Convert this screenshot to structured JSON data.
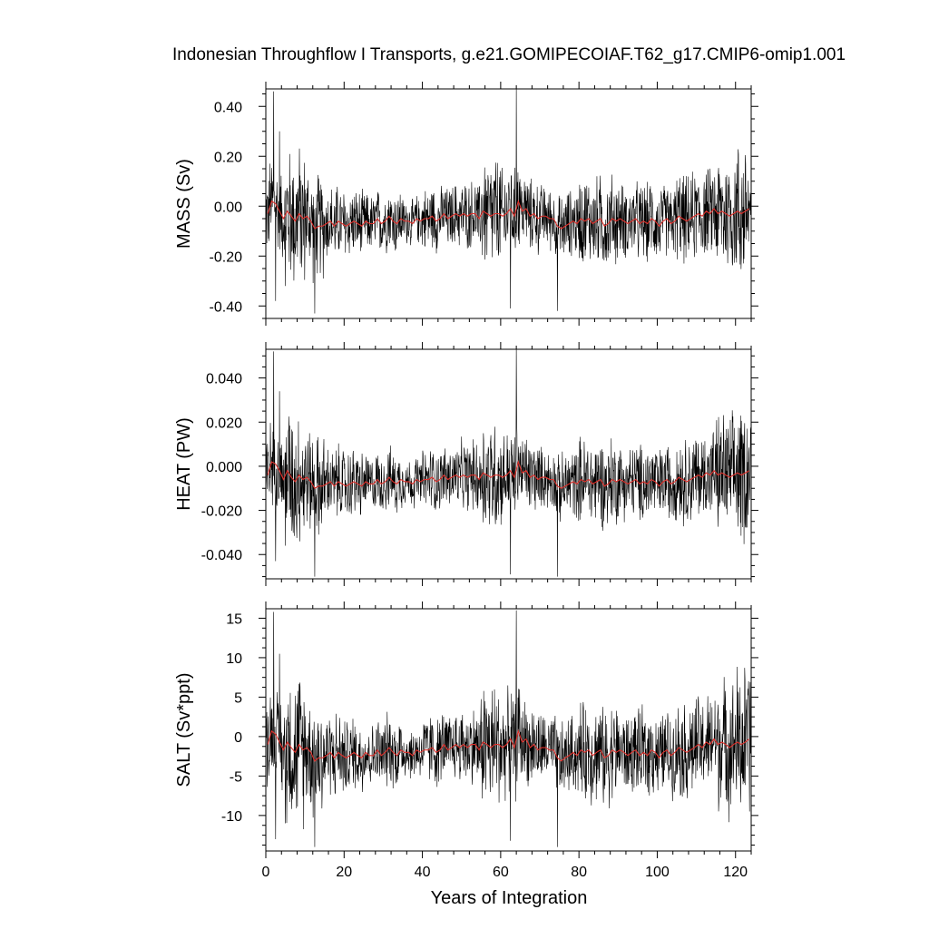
{
  "title": "Indonesian Throughflow I Transports, g.e21.GOMIPECOIAF.T62_g17.CMIP6-omip1.001",
  "xlabel": "Years of Integration",
  "x_ticks": [
    "0",
    "20",
    "40",
    "60",
    "80",
    "100",
    "120"
  ],
  "colors": {
    "monthly": "#000000",
    "annual": "#e0302b"
  },
  "chart_data": [
    {
      "type": "line",
      "panel": "mass",
      "ylabel": "MASS (Sv)",
      "xlim": [
        0,
        124
      ],
      "ylim": [
        -0.45,
        0.47
      ],
      "y_ticks": [
        0.4,
        0.2,
        0.0,
        -0.2,
        -0.4
      ],
      "y_tick_labels": [
        "0.40",
        "0.20",
        "0.00",
        "-0.20",
        "-0.40"
      ],
      "series": [
        {
          "style": "monthly",
          "envelope": [
            0.16,
            0.26,
            0.2,
            0.14,
            0.13,
            0.11,
            0.12,
            0.09,
            0.12,
            0.12,
            0.13,
            0.22,
            0.18,
            0.14,
            0.12,
            0.13,
            0.17,
            0.17,
            0.14,
            0.15,
            0.14,
            0.17,
            0.17,
            0.23,
            0.27
          ],
          "extremes": [
            [
              2,
              0.46
            ],
            [
              2.5,
              -0.38
            ],
            [
              5,
              -0.32
            ],
            [
              12.5,
              -0.43
            ],
            [
              64,
              0.47
            ],
            [
              62.5,
              -0.41
            ],
            [
              74.5,
              -0.42
            ],
            [
              3.5,
              0.3
            ]
          ]
        },
        {
          "style": "annual",
          "x": [
            0,
            1,
            2,
            3,
            4,
            5,
            6,
            7,
            8,
            9,
            10,
            11,
            12,
            13,
            14,
            15,
            16,
            17,
            18,
            19,
            20,
            21,
            22,
            23,
            24,
            25,
            26,
            27,
            28,
            29,
            30,
            31,
            32,
            33,
            34,
            35,
            36,
            37,
            38,
            39,
            40,
            41,
            42,
            43,
            44,
            45,
            46,
            47,
            48,
            49,
            50,
            51,
            52,
            53,
            54,
            55,
            56,
            57,
            58,
            59,
            60,
            61,
            62,
            63,
            64,
            65,
            66,
            67,
            68,
            69,
            70,
            71,
            72,
            73,
            74,
            75,
            76,
            77,
            78,
            79,
            80,
            81,
            82,
            83,
            84,
            85,
            86,
            87,
            88,
            89,
            90,
            91,
            92,
            93,
            94,
            95,
            96,
            97,
            98,
            99,
            100,
            101,
            102,
            103,
            104,
            105,
            106,
            107,
            108,
            109,
            110,
            111,
            112,
            113,
            114,
            115,
            116,
            117,
            118,
            119,
            120,
            121,
            122,
            123
          ],
          "y": [
            -0.03,
            0.02,
            0.01,
            -0.02,
            -0.05,
            -0.02,
            -0.04,
            -0.06,
            -0.03,
            -0.05,
            -0.04,
            -0.06,
            -0.09,
            -0.08,
            -0.08,
            -0.07,
            -0.06,
            -0.08,
            -0.06,
            -0.07,
            -0.08,
            -0.07,
            -0.06,
            -0.07,
            -0.08,
            -0.06,
            -0.07,
            -0.07,
            -0.05,
            -0.07,
            -0.06,
            -0.04,
            -0.06,
            -0.07,
            -0.05,
            -0.06,
            -0.06,
            -0.07,
            -0.05,
            -0.06,
            -0.05,
            -0.05,
            -0.04,
            -0.06,
            -0.05,
            -0.03,
            -0.05,
            -0.04,
            -0.03,
            -0.04,
            -0.03,
            -0.04,
            -0.03,
            -0.03,
            -0.05,
            -0.02,
            -0.03,
            -0.04,
            -0.03,
            -0.03,
            -0.04,
            -0.03,
            -0.01,
            -0.04,
            0.02,
            -0.02,
            -0.01,
            -0.04,
            -0.03,
            -0.05,
            -0.04,
            -0.04,
            -0.05,
            -0.05,
            -0.08,
            -0.09,
            -0.08,
            -0.07,
            -0.06,
            -0.07,
            -0.05,
            -0.06,
            -0.05,
            -0.07,
            -0.06,
            -0.05,
            -0.08,
            -0.07,
            -0.05,
            -0.06,
            -0.05,
            -0.06,
            -0.07,
            -0.06,
            -0.05,
            -0.07,
            -0.06,
            -0.07,
            -0.05,
            -0.06,
            -0.08,
            -0.06,
            -0.05,
            -0.07,
            -0.06,
            -0.04,
            -0.05,
            -0.06,
            -0.05,
            -0.04,
            -0.03,
            -0.04,
            -0.02,
            -0.03,
            -0.01,
            -0.03,
            -0.02,
            -0.03,
            -0.04,
            -0.03,
            -0.02,
            -0.03,
            -0.02,
            -0.01
          ]
        }
      ]
    },
    {
      "type": "line",
      "panel": "heat",
      "ylabel": "HEAT (PW)",
      "xlim": [
        0,
        124
      ],
      "ylim": [
        -0.051,
        0.053
      ],
      "y_ticks": [
        0.04,
        0.02,
        0.0,
        -0.02,
        -0.04
      ],
      "y_tick_labels": [
        "0.040",
        "0.020",
        "0.000",
        "-0.020",
        "-0.040"
      ],
      "series": [
        {
          "style": "monthly",
          "envelope": [
            0.018,
            0.029,
            0.022,
            0.016,
            0.015,
            0.012,
            0.013,
            0.01,
            0.013,
            0.013,
            0.015,
            0.025,
            0.02,
            0.016,
            0.013,
            0.015,
            0.019,
            0.019,
            0.016,
            0.017,
            0.016,
            0.019,
            0.019,
            0.026,
            0.03
          ],
          "extremes": [
            [
              2,
              0.052
            ],
            [
              2.5,
              -0.043
            ],
            [
              5,
              -0.036
            ],
            [
              12.5,
              -0.05
            ],
            [
              64,
              0.053
            ],
            [
              62.5,
              -0.049
            ],
            [
              74.5,
              -0.05
            ],
            [
              3.5,
              0.034
            ]
          ]
        },
        {
          "style": "annual",
          "x": [
            0,
            1,
            2,
            3,
            4,
            5,
            6,
            7,
            8,
            9,
            10,
            11,
            12,
            13,
            14,
            15,
            16,
            17,
            18,
            19,
            20,
            21,
            22,
            23,
            24,
            25,
            26,
            27,
            28,
            29,
            30,
            31,
            32,
            33,
            34,
            35,
            36,
            37,
            38,
            39,
            40,
            41,
            42,
            43,
            44,
            45,
            46,
            47,
            48,
            49,
            50,
            51,
            52,
            53,
            54,
            55,
            56,
            57,
            58,
            59,
            60,
            61,
            62,
            63,
            64,
            65,
            66,
            67,
            68,
            69,
            70,
            71,
            72,
            73,
            74,
            75,
            76,
            77,
            78,
            79,
            80,
            81,
            82,
            83,
            84,
            85,
            86,
            87,
            88,
            89,
            90,
            91,
            92,
            93,
            94,
            95,
            96,
            97,
            98,
            99,
            100,
            101,
            102,
            103,
            104,
            105,
            106,
            107,
            108,
            109,
            110,
            111,
            112,
            113,
            114,
            115,
            116,
            117,
            118,
            119,
            120,
            121,
            122,
            123
          ],
          "y": [
            -0.004,
            0.002,
            0.001,
            -0.002,
            -0.006,
            -0.002,
            -0.005,
            -0.007,
            -0.004,
            -0.006,
            -0.005,
            -0.007,
            -0.01,
            -0.009,
            -0.009,
            -0.008,
            -0.007,
            -0.009,
            -0.007,
            -0.008,
            -0.009,
            -0.008,
            -0.007,
            -0.008,
            -0.009,
            -0.007,
            -0.008,
            -0.008,
            -0.006,
            -0.008,
            -0.007,
            -0.005,
            -0.007,
            -0.008,
            -0.006,
            -0.007,
            -0.007,
            -0.008,
            -0.006,
            -0.007,
            -0.006,
            -0.006,
            -0.005,
            -0.007,
            -0.006,
            -0.004,
            -0.006,
            -0.005,
            -0.004,
            -0.005,
            -0.004,
            -0.005,
            -0.004,
            -0.004,
            -0.006,
            -0.003,
            -0.004,
            -0.005,
            -0.004,
            -0.004,
            -0.005,
            -0.004,
            -0.002,
            -0.005,
            0.002,
            -0.003,
            -0.002,
            -0.005,
            -0.004,
            -0.006,
            -0.005,
            -0.005,
            -0.006,
            -0.006,
            -0.009,
            -0.01,
            -0.009,
            -0.008,
            -0.007,
            -0.008,
            -0.006,
            -0.007,
            -0.006,
            -0.008,
            -0.007,
            -0.006,
            -0.009,
            -0.008,
            -0.006,
            -0.007,
            -0.006,
            -0.007,
            -0.008,
            -0.007,
            -0.006,
            -0.008,
            -0.007,
            -0.008,
            -0.006,
            -0.007,
            -0.009,
            -0.007,
            -0.006,
            -0.008,
            -0.007,
            -0.005,
            -0.006,
            -0.007,
            -0.006,
            -0.005,
            -0.004,
            -0.005,
            -0.003,
            -0.004,
            -0.002,
            -0.004,
            -0.003,
            -0.004,
            -0.005,
            -0.004,
            -0.003,
            -0.004,
            -0.003,
            -0.002
          ]
        }
      ]
    },
    {
      "type": "line",
      "panel": "salt",
      "ylabel": "SALT (Sv*ppt)",
      "xlim": [
        0,
        124
      ],
      "ylim": [
        -14.5,
        16.2
      ],
      "y_ticks": [
        15,
        10,
        5,
        0,
        -5,
        -10
      ],
      "y_tick_labels": [
        "15",
        "10",
        "5",
        "0",
        "-5",
        "-10"
      ],
      "series": [
        {
          "style": "monthly",
          "envelope": [
            5.5,
            9.0,
            7.0,
            5.0,
            4.5,
            3.8,
            4.2,
            3.2,
            4.2,
            4.2,
            4.6,
            7.7,
            6.3,
            4.9,
            4.2,
            4.6,
            5.9,
            5.9,
            4.9,
            5.3,
            4.9,
            5.9,
            5.9,
            8.0,
            9.4
          ],
          "extremes": [
            [
              2,
              15.8
            ],
            [
              2.5,
              -13.0
            ],
            [
              5,
              -11.0
            ],
            [
              12.5,
              -14.0
            ],
            [
              64,
              16.0
            ],
            [
              62.5,
              -13.2
            ],
            [
              74.5,
              -14.0
            ],
            [
              3.5,
              10.5
            ]
          ]
        },
        {
          "style": "annual",
          "x": [
            0,
            1,
            2,
            3,
            4,
            5,
            6,
            7,
            8,
            9,
            10,
            11,
            12,
            13,
            14,
            15,
            16,
            17,
            18,
            19,
            20,
            21,
            22,
            23,
            24,
            25,
            26,
            27,
            28,
            29,
            30,
            31,
            32,
            33,
            34,
            35,
            36,
            37,
            38,
            39,
            40,
            41,
            42,
            43,
            44,
            45,
            46,
            47,
            48,
            49,
            50,
            51,
            52,
            53,
            54,
            55,
            56,
            57,
            58,
            59,
            60,
            61,
            62,
            63,
            64,
            65,
            66,
            67,
            68,
            69,
            70,
            71,
            72,
            73,
            74,
            75,
            76,
            77,
            78,
            79,
            80,
            81,
            82,
            83,
            84,
            85,
            86,
            87,
            88,
            89,
            90,
            91,
            92,
            93,
            94,
            95,
            96,
            97,
            98,
            99,
            100,
            101,
            102,
            103,
            104,
            105,
            106,
            107,
            108,
            109,
            110,
            111,
            112,
            113,
            114,
            115,
            116,
            117,
            118,
            119,
            120,
            121,
            122,
            123
          ],
          "y": [
            -1.0,
            0.7,
            0.3,
            -0.7,
            -1.7,
            -0.7,
            -1.4,
            -2.0,
            -1.0,
            -1.7,
            -1.4,
            -2.0,
            -3.1,
            -2.7,
            -2.7,
            -2.4,
            -2.0,
            -2.7,
            -2.0,
            -2.4,
            -2.7,
            -2.4,
            -2.0,
            -2.4,
            -2.7,
            -2.0,
            -2.4,
            -2.4,
            -1.7,
            -2.4,
            -2.0,
            -1.4,
            -2.0,
            -2.4,
            -1.7,
            -2.0,
            -2.0,
            -2.4,
            -1.7,
            -2.0,
            -1.7,
            -1.7,
            -1.4,
            -2.0,
            -1.7,
            -1.0,
            -1.7,
            -1.4,
            -1.0,
            -1.4,
            -1.0,
            -1.4,
            -1.0,
            -1.0,
            -1.7,
            -0.7,
            -1.0,
            -1.4,
            -1.0,
            -1.0,
            -1.4,
            -1.0,
            -0.3,
            -1.4,
            0.7,
            -0.7,
            -0.3,
            -1.4,
            -1.0,
            -1.7,
            -1.4,
            -1.4,
            -1.7,
            -1.7,
            -2.7,
            -3.1,
            -2.7,
            -2.4,
            -2.0,
            -2.4,
            -1.7,
            -2.0,
            -1.7,
            -2.4,
            -2.0,
            -1.7,
            -2.7,
            -2.4,
            -1.7,
            -2.0,
            -1.7,
            -2.0,
            -2.4,
            -2.0,
            -1.7,
            -2.4,
            -2.0,
            -2.4,
            -1.7,
            -2.0,
            -2.7,
            -2.0,
            -1.7,
            -2.4,
            -2.0,
            -1.4,
            -1.7,
            -2.0,
            -1.7,
            -1.4,
            -1.0,
            -1.4,
            -0.7,
            -1.0,
            -0.3,
            -1.0,
            -0.7,
            -1.0,
            -1.4,
            -1.0,
            -0.7,
            -1.0,
            -0.7,
            -0.3
          ]
        }
      ]
    }
  ]
}
